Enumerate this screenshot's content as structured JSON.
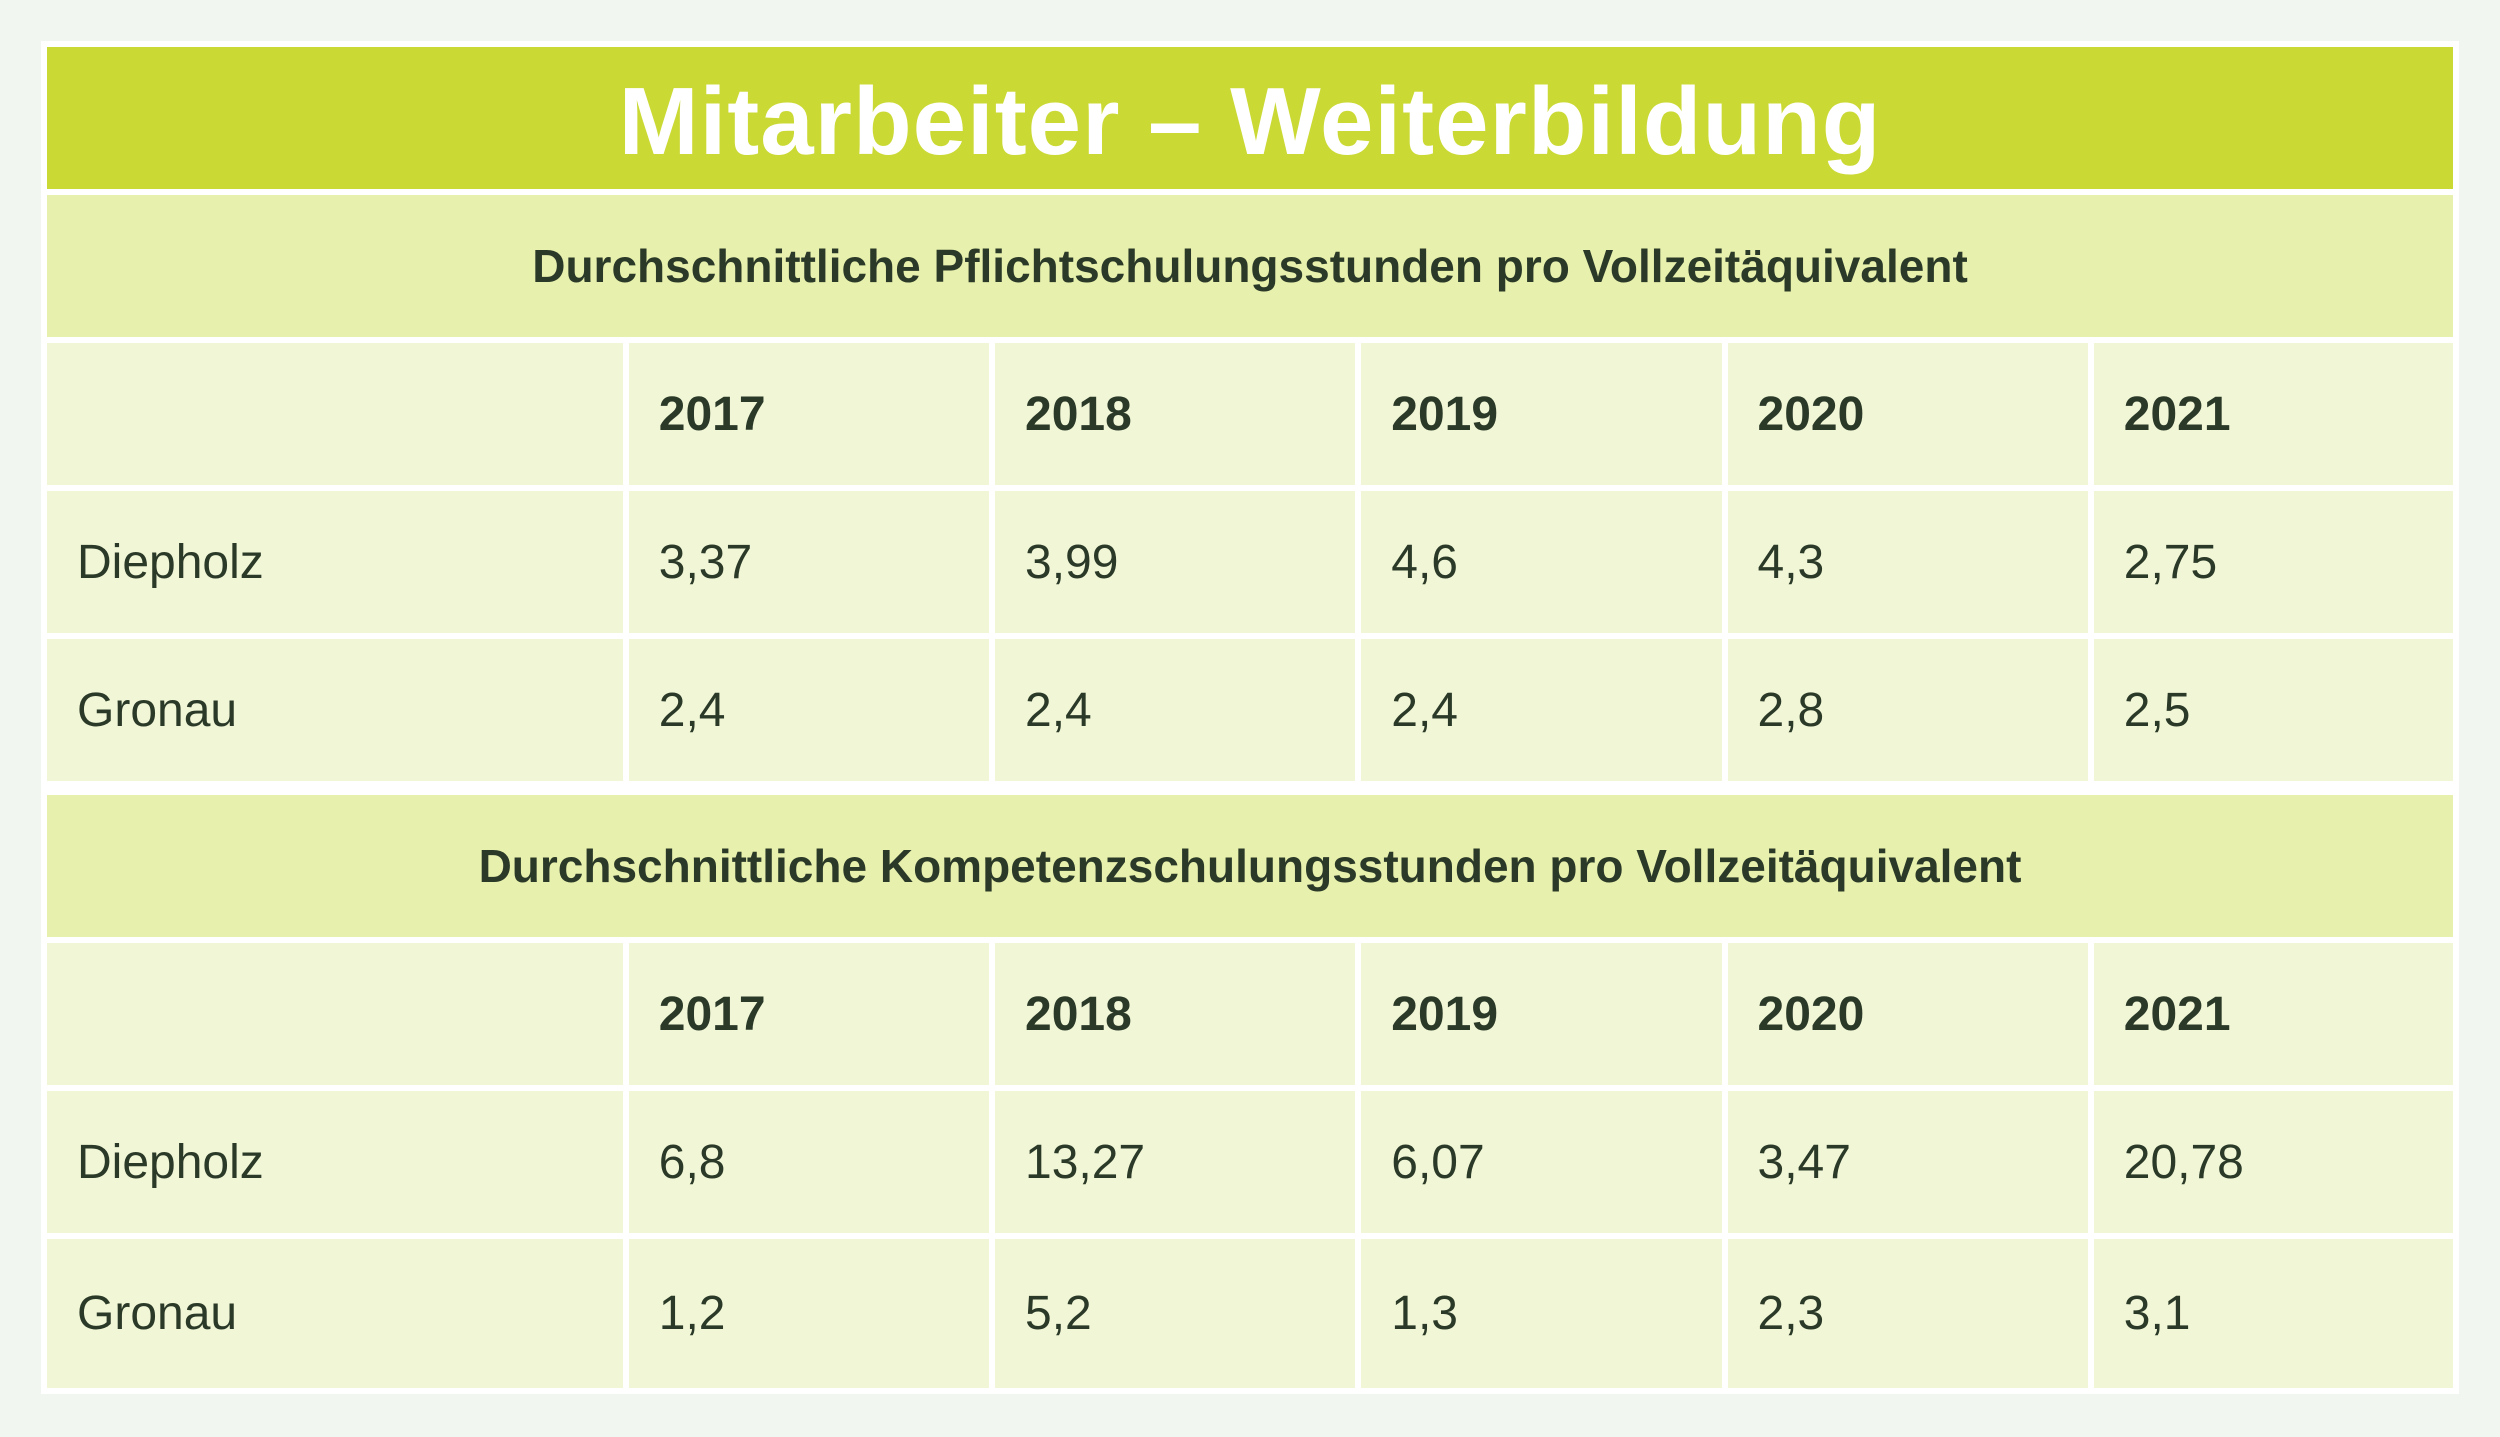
{
  "title": "Mitarbeiter – Weiterbildung",
  "sections": [
    {
      "heading": "Durchschnittliche Pflichtschulungsstunden pro Vollzeitäquivalent",
      "years": [
        "2017",
        "2018",
        "2019",
        "2020",
        "2021"
      ],
      "rows": [
        {
          "label": "Diepholz",
          "values": [
            "3,37",
            "3,99",
            "4,6",
            "4,3",
            "2,75"
          ]
        },
        {
          "label": "Gronau",
          "values": [
            "2,4",
            "2,4",
            "2,4",
            "2,8",
            "2,5"
          ]
        }
      ]
    },
    {
      "heading": "Durchschnittliche Kompetenzschulungsstunden pro Vollzeitäquivalent",
      "years": [
        "2017",
        "2018",
        "2019",
        "2020",
        "2021"
      ],
      "rows": [
        {
          "label": "Diepholz",
          "values": [
            "6,8",
            "13,27",
            "6,07",
            "3,47",
            "20,78"
          ]
        },
        {
          "label": "Gronau",
          "values": [
            "1,2",
            "5,2",
            "1,3",
            "2,3",
            "3,1"
          ]
        }
      ]
    }
  ],
  "colors": {
    "title_bar": "#cbd934",
    "section_header": "#e8f0ad",
    "cell": "#f1f6d6",
    "text": "#2b3a28",
    "background": "#f2f6f1"
  }
}
